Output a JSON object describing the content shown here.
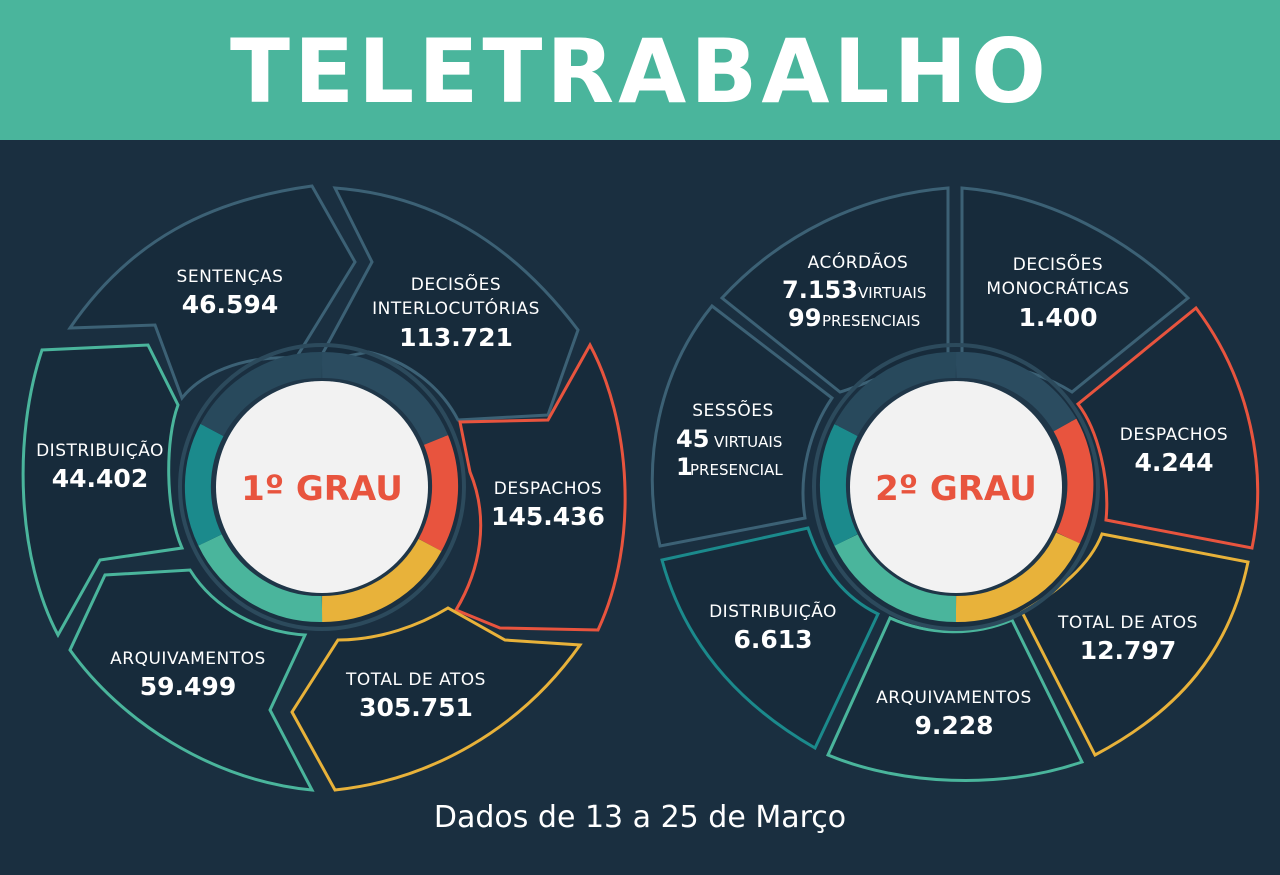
{
  "header": {
    "title": "TELETRABALHO"
  },
  "footer": {
    "text": "Dados de 13 a 25 de Março"
  },
  "colors": {
    "teal": "#4ab59c",
    "red": "#e8543e",
    "yellow": "#e8b23a",
    "slate": "#3c6175",
    "background": "#1a2f40"
  },
  "grau1": {
    "title": "1º GRAU",
    "sentencas": {
      "label": "SENTENÇAS",
      "value": "46.594"
    },
    "decisoes": {
      "label1": "DECISÕES",
      "label2": "INTERLOCUTÓRIAS",
      "value": "113.721"
    },
    "despachos": {
      "label": "DESPACHOS",
      "value": "145.436"
    },
    "total": {
      "label": "TOTAL DE ATOS",
      "value": "305.751"
    },
    "arquivamentos": {
      "label": "ARQUIVAMENTOS",
      "value": "59.499"
    },
    "distribuicao": {
      "label": "DISTRIBUIÇÃO",
      "value": "44.402"
    }
  },
  "grau2": {
    "title": "2º GRAU",
    "acordaos": {
      "label": "ACÓRDÃOS",
      "virtual_value": "7.153",
      "virtual_label": "VIRTUAIS",
      "presencial_value": "99",
      "presencial_label": "PRESENCIAIS"
    },
    "decisoes": {
      "label1": "DECISÕES",
      "label2": "MONOCRÁTICAS",
      "value": "1.400"
    },
    "despachos": {
      "label": "DESPACHOS",
      "value": "4.244"
    },
    "total": {
      "label": "TOTAL DE ATOS",
      "value": "12.797"
    },
    "arquivamentos": {
      "label": "ARQUIVAMENTOS",
      "value": "9.228"
    },
    "distribuicao": {
      "label": "DISTRIBUIÇÃO",
      "value": "6.613"
    },
    "sessoes": {
      "label": "SESSÕES",
      "virtual_value": "45",
      "virtual_label": "VIRTUAIS",
      "presencial_value": "1",
      "presencial_label": "PRESENCIAL"
    }
  }
}
